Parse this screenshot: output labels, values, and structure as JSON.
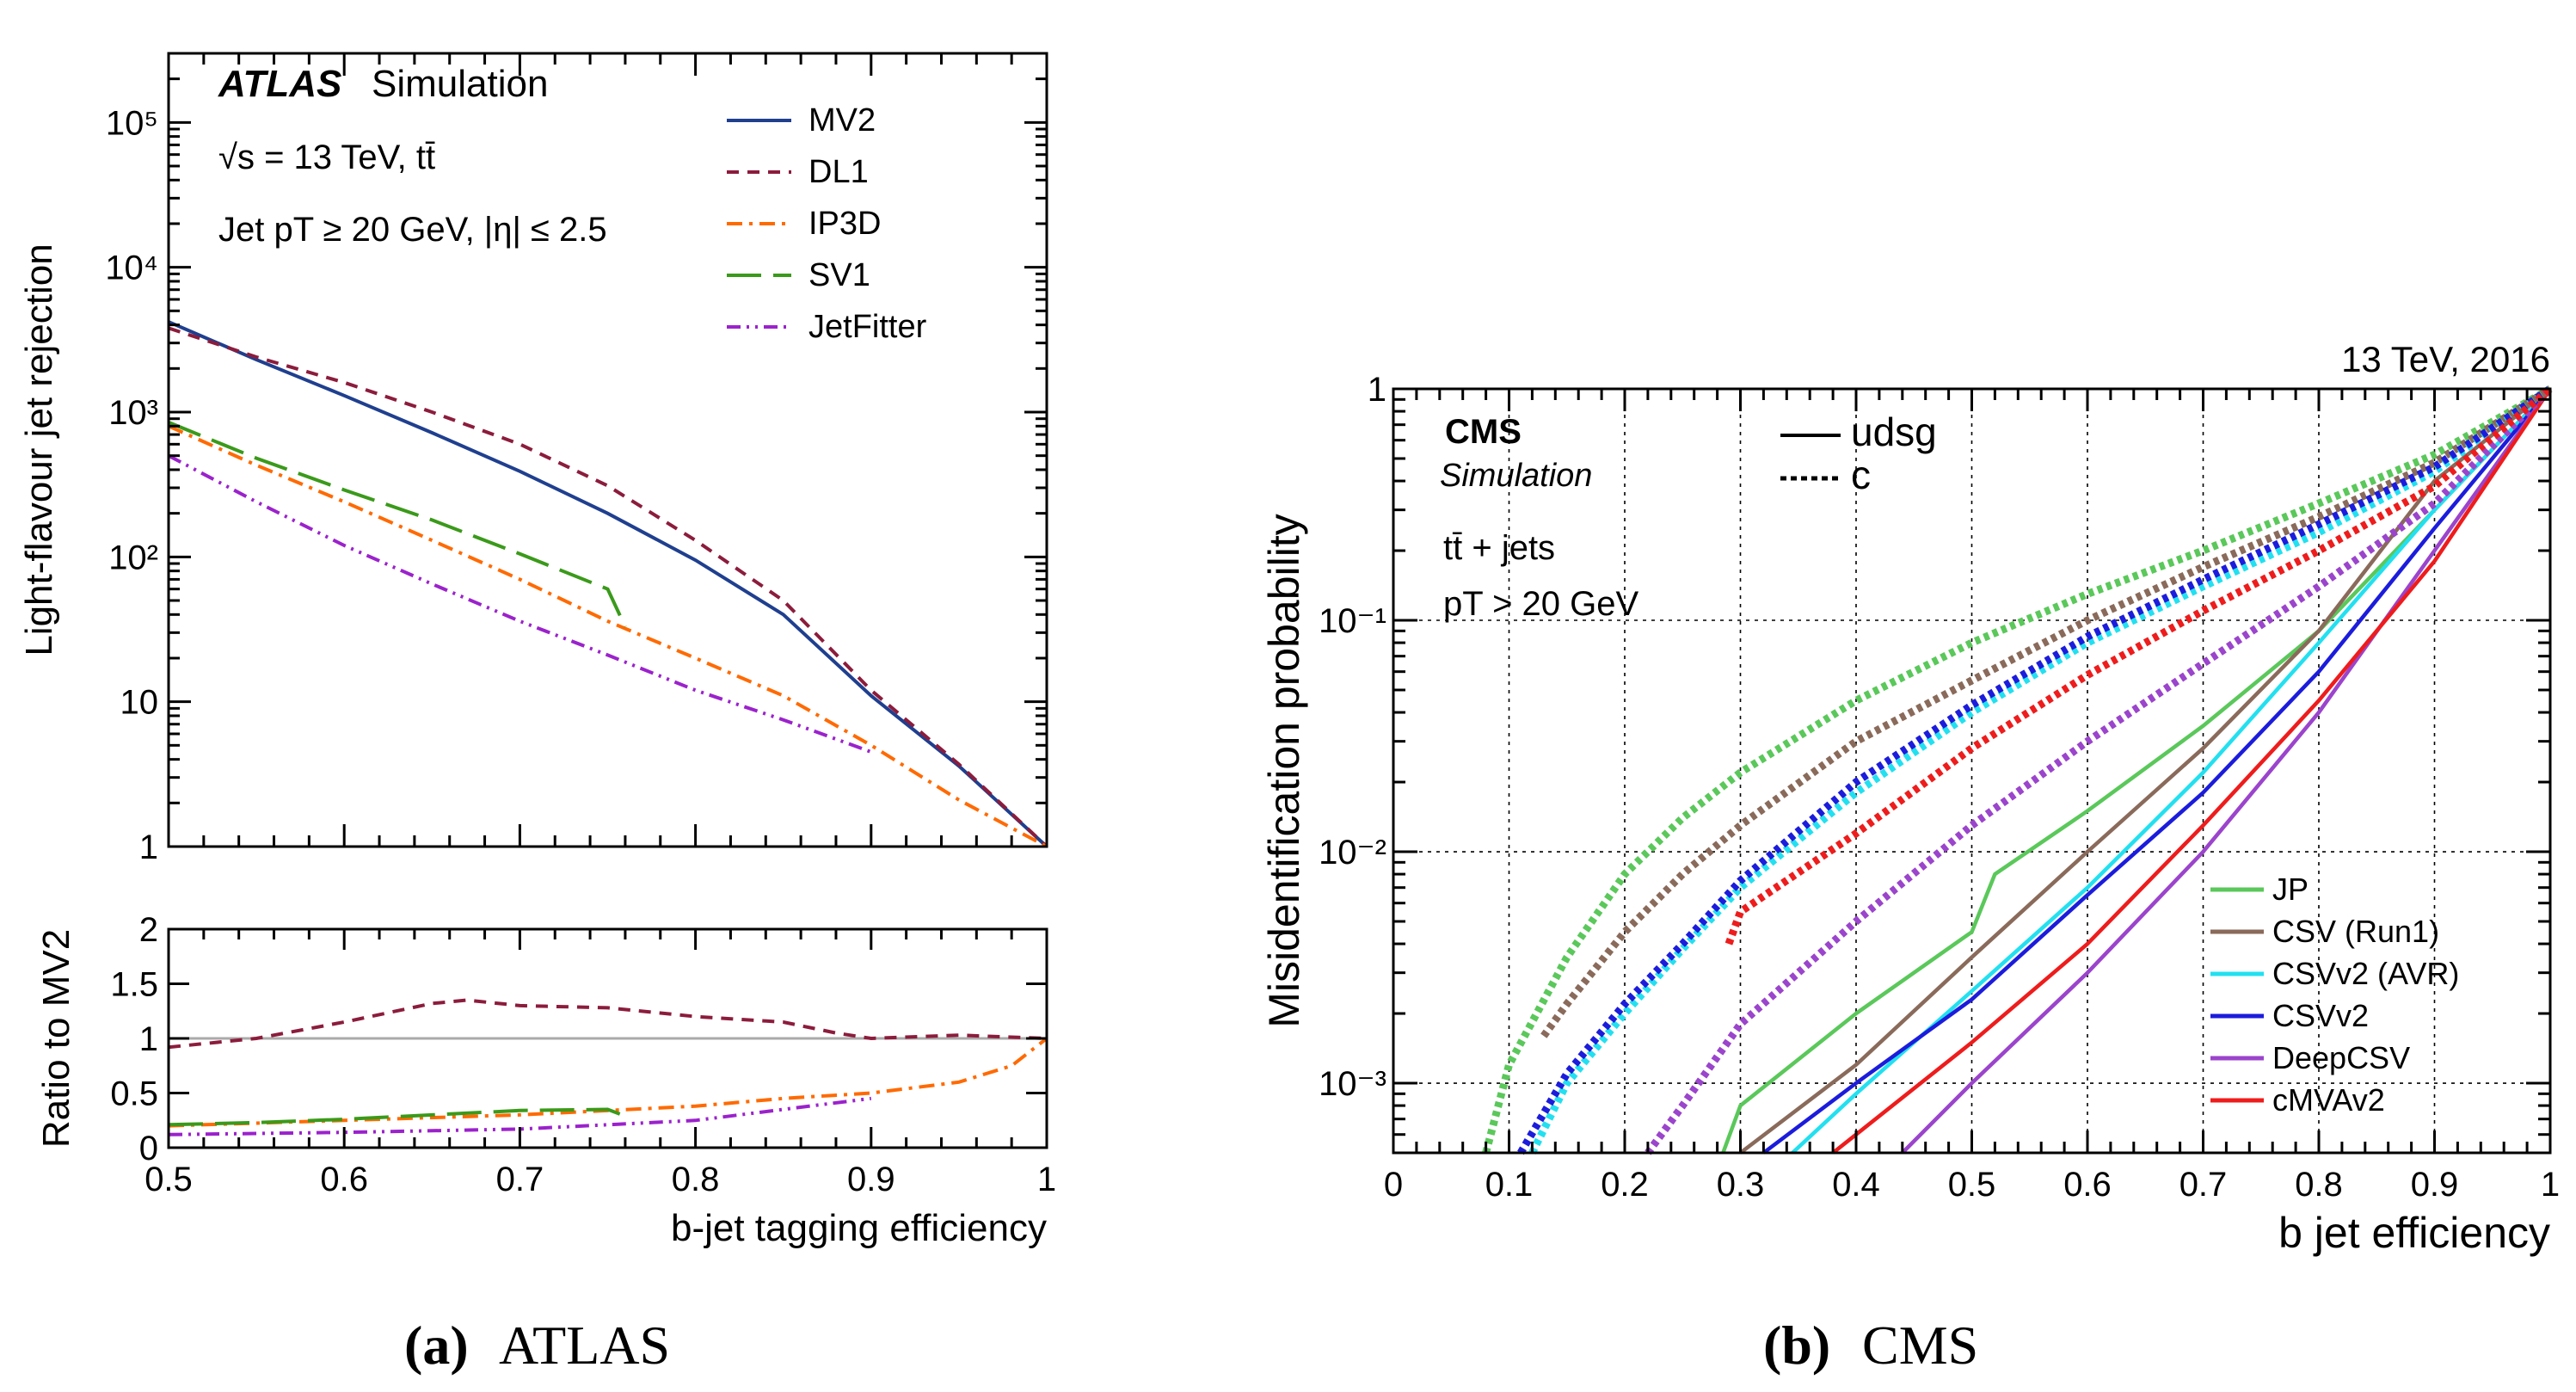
{
  "figure": {
    "atlas_caption": {
      "letter": "(a)",
      "name": "ATLAS"
    },
    "cms_caption": {
      "letter": "(b)",
      "name": "CMS"
    }
  },
  "chart_data": [
    {
      "id": "atlas-main",
      "type": "line",
      "title": "ATLAS Simulation",
      "experiment": "ATLAS",
      "experiment_sub": "Simulation",
      "info_lines": [
        "√s = 13 TeV, tt̄",
        "Jet pT ≥ 20 GeV, |η| ≤ 2.5"
      ],
      "ylabel": "Light-flavour jet rejection",
      "xlim": [
        0.5,
        1.0
      ],
      "ylim": [
        1,
        300000
      ],
      "yscale": "log",
      "ytick_labels": [
        "1",
        "10",
        "10²",
        "10³",
        "10⁴",
        "10⁵"
      ],
      "legend_position": "top-right",
      "series": [
        {
          "name": "MV2",
          "color": "#1f3f8f",
          "dash": "solid",
          "x": [
            0.5,
            0.55,
            0.6,
            0.65,
            0.7,
            0.75,
            0.8,
            0.85,
            0.9,
            0.95,
            1.0
          ],
          "y": [
            4200,
            2300,
            1300,
            720,
            390,
            200,
            95,
            40,
            11,
            3.6,
            1
          ]
        },
        {
          "name": "DL1",
          "color": "#8c1c3c",
          "dash": "short",
          "x": [
            0.5,
            0.55,
            0.6,
            0.65,
            0.7,
            0.75,
            0.8,
            0.85,
            0.9,
            0.95,
            1.0
          ],
          "y": [
            3800,
            2400,
            1600,
            1000,
            600,
            310,
            130,
            50,
            12,
            3.7,
            1
          ]
        },
        {
          "name": "IP3D",
          "color": "#ff6a00",
          "dash": "dashdot",
          "x": [
            0.5,
            0.55,
            0.6,
            0.65,
            0.7,
            0.75,
            0.8,
            0.85,
            0.9,
            0.95,
            1.0
          ],
          "y": [
            800,
            430,
            240,
            130,
            70,
            36,
            20,
            11,
            5,
            2.1,
            1
          ]
        },
        {
          "name": "SV1",
          "color": "#3a9a1a",
          "dash": "long",
          "x": [
            0.5,
            0.55,
            0.6,
            0.65,
            0.7,
            0.75,
            0.76
          ],
          "y": [
            850,
            480,
            290,
            180,
            105,
            60,
            33
          ]
        },
        {
          "name": "JetFitter",
          "color": "#9b22cc",
          "dash": "dashdotdot",
          "x": [
            0.5,
            0.55,
            0.6,
            0.65,
            0.7,
            0.75,
            0.8,
            0.85,
            0.9
          ],
          "y": [
            500,
            240,
            120,
            65,
            36,
            21,
            12,
            7.5,
            4.5
          ]
        }
      ]
    },
    {
      "id": "atlas-ratio",
      "type": "line",
      "ylabel": "Ratio to MV2",
      "xlabel": "b-jet tagging efficiency",
      "xlim": [
        0.5,
        1.0
      ],
      "ylim": [
        0,
        2
      ],
      "x_ticks": [
        0.5,
        0.6,
        0.7,
        0.8,
        0.9,
        1.0
      ],
      "x_tick_labels": [
        "0.5",
        "0.6",
        "0.7",
        "0.8",
        "0.9",
        "1"
      ],
      "y_ticks": [
        0,
        0.5,
        1,
        1.5,
        2
      ],
      "y_tick_labels": [
        "0",
        "0.5",
        "1",
        "1.5",
        "2"
      ],
      "reference_line": 1,
      "series": [
        {
          "name": "DL1",
          "color": "#8c1c3c",
          "dash": "short",
          "x": [
            0.5,
            0.55,
            0.6,
            0.65,
            0.67,
            0.7,
            0.75,
            0.8,
            0.85,
            0.88,
            0.9,
            0.95,
            1.0
          ],
          "y": [
            0.92,
            1.0,
            1.15,
            1.32,
            1.35,
            1.3,
            1.28,
            1.2,
            1.15,
            1.05,
            1.0,
            1.03,
            1.0
          ]
        },
        {
          "name": "IP3D",
          "color": "#ff6a00",
          "dash": "dashdot",
          "x": [
            0.5,
            0.6,
            0.7,
            0.8,
            0.85,
            0.9,
            0.95,
            0.98,
            1.0
          ],
          "y": [
            0.2,
            0.25,
            0.3,
            0.38,
            0.45,
            0.5,
            0.6,
            0.75,
            1.0
          ]
        },
        {
          "name": "SV1",
          "color": "#3a9a1a",
          "dash": "long",
          "x": [
            0.5,
            0.55,
            0.6,
            0.65,
            0.7,
            0.75,
            0.76
          ],
          "y": [
            0.21,
            0.23,
            0.26,
            0.3,
            0.34,
            0.35,
            0.29
          ]
        },
        {
          "name": "JetFitter",
          "color": "#9b22cc",
          "dash": "dashdotdot",
          "x": [
            0.5,
            0.6,
            0.7,
            0.8,
            0.85,
            0.9
          ],
          "y": [
            0.12,
            0.14,
            0.17,
            0.25,
            0.35,
            0.45
          ]
        }
      ]
    },
    {
      "id": "cms",
      "type": "line",
      "top_label": "13 TeV, 2016",
      "experiment": "CMS",
      "experiment_sub": "Simulation",
      "info_lines": [
        "tt̄ + jets",
        "pT > 20 GeV"
      ],
      "ylabel": "Misidentification probability",
      "xlabel": "b jet efficiency",
      "xlim": [
        0,
        1
      ],
      "ylim": [
        0.0005,
        1
      ],
      "yscale": "log",
      "x_ticks": [
        0,
        0.1,
        0.2,
        0.3,
        0.4,
        0.5,
        0.6,
        0.7,
        0.8,
        0.9,
        1
      ],
      "x_tick_labels": [
        "0",
        "0.1",
        "0.2",
        "0.3",
        "0.4",
        "0.5",
        "0.6",
        "0.7",
        "0.8",
        "0.9",
        "1"
      ],
      "y_tick_labels": [
        "10⁻³",
        "10⁻²",
        "10⁻¹",
        "1"
      ],
      "style_legend": [
        {
          "label": "udsg",
          "dash": "solid"
        },
        {
          "label": "c",
          "dash": "dotted"
        }
      ],
      "legend_position": "bottom-right",
      "series": [
        {
          "name": "JP",
          "flavour": "udsg",
          "color": "#5ac85a",
          "x": [
            0.285,
            0.3,
            0.4,
            0.5,
            0.52,
            0.6,
            0.7,
            0.8,
            0.9,
            1.0
          ],
          "y": [
            0.0005,
            0.0008,
            0.002,
            0.0045,
            0.008,
            0.015,
            0.035,
            0.09,
            0.3,
            1
          ]
        },
        {
          "name": "CSV (Run1)",
          "flavour": "udsg",
          "color": "#8a6a5a",
          "x": [
            0.3,
            0.4,
            0.5,
            0.6,
            0.7,
            0.8,
            0.9,
            1.0
          ],
          "y": [
            0.0005,
            0.0012,
            0.0035,
            0.01,
            0.028,
            0.09,
            0.4,
            1
          ]
        },
        {
          "name": "CSVv2 (AVR)",
          "flavour": "udsg",
          "color": "#22e0f0",
          "x": [
            0.345,
            0.4,
            0.5,
            0.6,
            0.7,
            0.8,
            0.9,
            1.0
          ],
          "y": [
            0.0005,
            0.0009,
            0.0025,
            0.007,
            0.022,
            0.08,
            0.3,
            1
          ]
        },
        {
          "name": "CSVv2",
          "flavour": "udsg",
          "color": "#1c1cdc",
          "x": [
            0.32,
            0.4,
            0.5,
            0.6,
            0.7,
            0.8,
            0.9,
            1.0
          ],
          "y": [
            0.0005,
            0.001,
            0.0023,
            0.0065,
            0.018,
            0.06,
            0.25,
            1
          ]
        },
        {
          "name": "DeepCSV",
          "flavour": "udsg",
          "color": "#9b44cc",
          "x": [
            0.44,
            0.5,
            0.6,
            0.7,
            0.8,
            0.9,
            1.0
          ],
          "y": [
            0.0005,
            0.001,
            0.003,
            0.01,
            0.04,
            0.2,
            1
          ]
        },
        {
          "name": "cMVAv2",
          "flavour": "udsg",
          "color": "#ee1c1c",
          "x": [
            0.38,
            0.4,
            0.5,
            0.6,
            0.7,
            0.8,
            0.9,
            1.0
          ],
          "y": [
            0.0005,
            0.0006,
            0.0015,
            0.004,
            0.013,
            0.045,
            0.18,
            1
          ]
        },
        {
          "name": "JP",
          "flavour": "c",
          "color": "#5ac85a",
          "x": [
            0.08,
            0.1,
            0.15,
            0.2,
            0.25,
            0.3,
            0.4,
            0.5,
            0.6,
            0.7,
            0.8,
            0.9,
            1.0
          ],
          "y": [
            0.0005,
            0.0012,
            0.0035,
            0.008,
            0.014,
            0.022,
            0.045,
            0.08,
            0.13,
            0.2,
            0.32,
            0.52,
            1
          ]
        },
        {
          "name": "CSV (Run1)",
          "flavour": "c",
          "color": "#8a6a5a",
          "x": [
            0.13,
            0.15,
            0.2,
            0.25,
            0.3,
            0.4,
            0.5,
            0.6,
            0.7,
            0.8,
            0.9,
            1.0
          ],
          "y": [
            0.0016,
            0.0022,
            0.0045,
            0.008,
            0.013,
            0.03,
            0.055,
            0.1,
            0.17,
            0.28,
            0.48,
            1
          ]
        },
        {
          "name": "CSVv2 (AVR)",
          "flavour": "c",
          "color": "#22e0f0",
          "x": [
            0.12,
            0.15,
            0.2,
            0.25,
            0.3,
            0.4,
            0.5,
            0.6,
            0.7,
            0.8,
            0.9,
            1.0
          ],
          "y": [
            0.0005,
            0.001,
            0.002,
            0.0038,
            0.007,
            0.018,
            0.04,
            0.08,
            0.14,
            0.24,
            0.44,
            1
          ]
        },
        {
          "name": "CSVv2",
          "flavour": "c",
          "color": "#1c1cdc",
          "x": [
            0.11,
            0.15,
            0.2,
            0.25,
            0.3,
            0.4,
            0.5,
            0.6,
            0.7,
            0.8,
            0.9,
            1.0
          ],
          "y": [
            0.0005,
            0.0011,
            0.0022,
            0.004,
            0.0075,
            0.02,
            0.043,
            0.085,
            0.15,
            0.26,
            0.46,
            1
          ]
        },
        {
          "name": "DeepCSV",
          "flavour": "c",
          "color": "#9b44cc",
          "x": [
            0.22,
            0.25,
            0.3,
            0.4,
            0.5,
            0.6,
            0.7,
            0.8,
            0.9,
            1.0
          ],
          "y": [
            0.0005,
            0.0008,
            0.0018,
            0.005,
            0.013,
            0.03,
            0.065,
            0.14,
            0.32,
            1
          ]
        },
        {
          "name": "cMVAv2",
          "flavour": "c",
          "color": "#ee1c1c",
          "x": [
            0.29,
            0.3,
            0.4,
            0.5,
            0.6,
            0.7,
            0.8,
            0.9,
            1.0
          ],
          "y": [
            0.004,
            0.0055,
            0.012,
            0.028,
            0.058,
            0.11,
            0.2,
            0.38,
            1
          ]
        }
      ]
    }
  ]
}
